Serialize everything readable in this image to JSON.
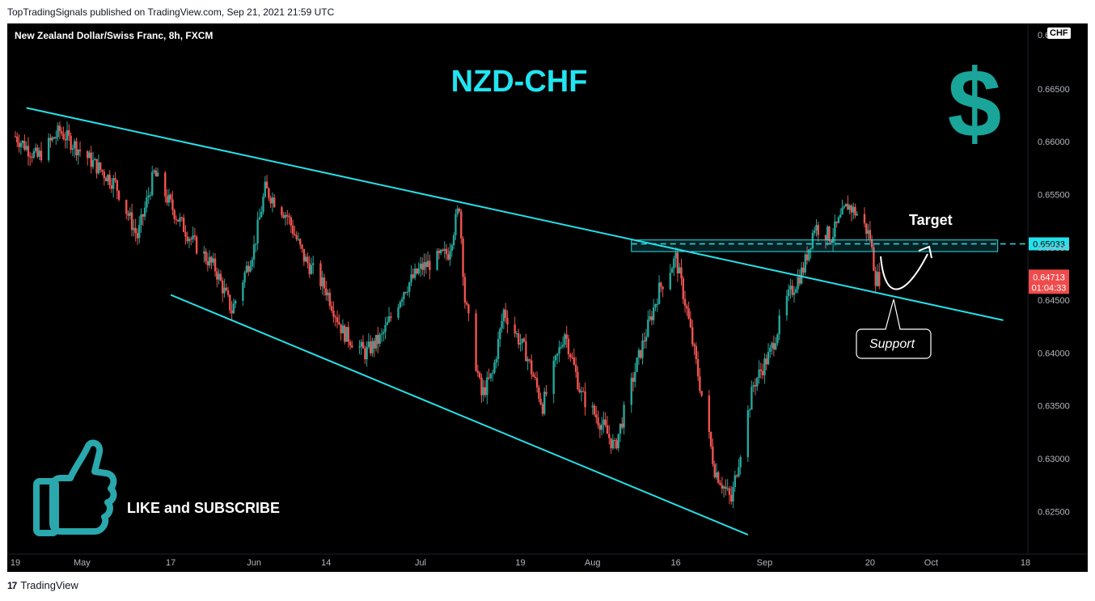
{
  "header": {
    "published": "TopTradingSignals published on TradingView.com, Sep 21, 2021 21:59 UTC"
  },
  "footer": {
    "brand": "TradingView",
    "logo": "17"
  },
  "chart": {
    "symbol_line": "New Zealand Dollar/Swiss Franc, 8h, FXCM",
    "currency_tag": "CHF"
  },
  "annotations": {
    "title": "NZD-CHF",
    "dollar": "$",
    "target": "Target",
    "support": "Support",
    "like": "LIKE and SUBSCRIBE"
  },
  "colors": {
    "background": "#000000",
    "up": "#26a69a",
    "down": "#ef5350",
    "trendline": "#26e0e8",
    "title": "#22e3f0",
    "dollar": "#1aa59a",
    "thumb": "#2aa8ad",
    "target_label_bg": "#23e2ee",
    "price_label_bg": "#ef4b4b"
  },
  "price_labels": {
    "target": "0.65033",
    "current": "0.64713",
    "countdown": "01:04:33"
  },
  "chart_data": {
    "type": "candlestick",
    "title": "New Zealand Dollar/Swiss Franc, 8h, FXCM",
    "x_ticks": [
      "19",
      "May",
      "17",
      "Jun",
      "14",
      "Jul",
      "19",
      "Aug",
      "16",
      "Sep",
      "20",
      "Oct",
      "18"
    ],
    "y_ticks": [
      "0.66500",
      "0.66000",
      "0.65500",
      "0.65000",
      "0.64500",
      "0.64000",
      "0.63500",
      "0.63000",
      "0.62500"
    ],
    "top_tick_partial": "0.6",
    "ylim": [
      0.6225,
      0.6705
    ],
    "x_range": [
      "2021-04-19",
      "2021-10-18"
    ],
    "close_path": [
      [
        "2021-04-19",
        0.6605
      ],
      [
        "2021-04-23",
        0.6585
      ],
      [
        "2021-04-27",
        0.661
      ],
      [
        "2021-05-03",
        0.658
      ],
      [
        "2021-05-07",
        0.656
      ],
      [
        "2021-05-11",
        0.651
      ],
      [
        "2021-05-14",
        0.657
      ],
      [
        "2021-05-18",
        0.653
      ],
      [
        "2021-05-21",
        0.6505
      ],
      [
        "2021-05-25",
        0.648
      ],
      [
        "2021-05-28",
        0.644
      ],
      [
        "2021-06-01",
        0.65
      ],
      [
        "2021-06-03",
        0.6555
      ],
      [
        "2021-06-07",
        0.653
      ],
      [
        "2021-06-10",
        0.649
      ],
      [
        "2021-06-14",
        0.646
      ],
      [
        "2021-06-17",
        0.642
      ],
      [
        "2021-06-21",
        0.64
      ],
      [
        "2021-06-24",
        0.6415
      ],
      [
        "2021-06-28",
        0.646
      ],
      [
        "2021-07-01",
        0.648
      ],
      [
        "2021-07-06",
        0.6495
      ],
      [
        "2021-07-08",
        0.654
      ],
      [
        "2021-07-09",
        0.645
      ],
      [
        "2021-07-12",
        0.636
      ],
      [
        "2021-07-14",
        0.638
      ],
      [
        "2021-07-16",
        0.644
      ],
      [
        "2021-07-20",
        0.64
      ],
      [
        "2021-07-23",
        0.635
      ],
      [
        "2021-07-27",
        0.642
      ],
      [
        "2021-07-30",
        0.636
      ],
      [
        "2021-08-03",
        0.633
      ],
      [
        "2021-08-05",
        0.631
      ],
      [
        "2021-08-09",
        0.639
      ],
      [
        "2021-08-13",
        0.646
      ],
      [
        "2021-08-16",
        0.649
      ],
      [
        "2021-08-18",
        0.644
      ],
      [
        "2021-08-20",
        0.638
      ],
      [
        "2021-08-23",
        0.629
      ],
      [
        "2021-08-26",
        0.626
      ],
      [
        "2021-08-27",
        0.629
      ],
      [
        "2021-08-30",
        0.637
      ],
      [
        "2021-09-02",
        0.64
      ],
      [
        "2021-09-05",
        0.645
      ],
      [
        "2021-09-08",
        0.648
      ],
      [
        "2021-09-10",
        0.652
      ],
      [
        "2021-09-13",
        0.651
      ],
      [
        "2021-09-16",
        0.654
      ],
      [
        "2021-09-18",
        0.653
      ],
      [
        "2021-09-20",
        0.651
      ],
      [
        "2021-09-21",
        0.6471
      ]
    ],
    "trendlines": [
      {
        "name": "upper",
        "from": [
          "2021-04-21",
          0.6632
        ],
        "to": [
          "2021-10-14",
          0.6431
        ]
      },
      {
        "name": "lower",
        "from": [
          "2021-05-17",
          0.6455
        ],
        "to": [
          "2021-08-29",
          0.6228
        ]
      }
    ],
    "resistance_zone": {
      "from": "2021-08-08",
      "to": "2021-10-13",
      "low": 0.6496,
      "high": 0.6507
    },
    "target_price": 0.65033,
    "current_price": 0.64713
  }
}
